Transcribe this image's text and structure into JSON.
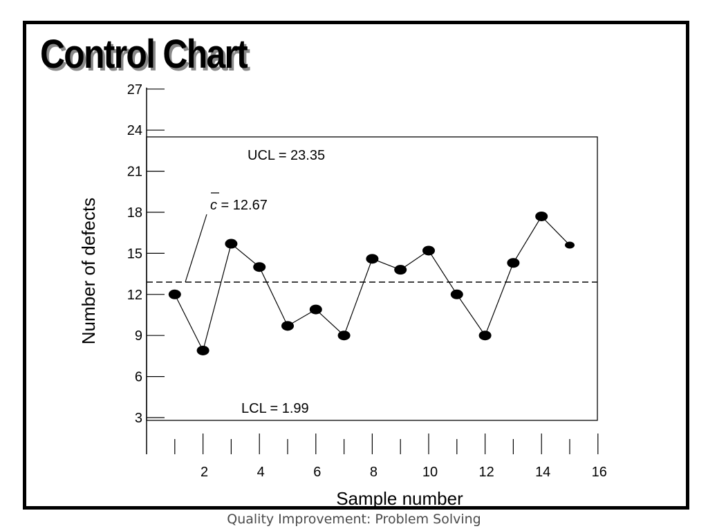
{
  "slide": {
    "title": "Control Chart",
    "footer": "Quality Improvement: Problem Solving"
  },
  "chart_data": {
    "type": "line",
    "title": "",
    "xlabel": "Sample number",
    "ylabel": "Number of defects",
    "x": [
      1,
      2,
      3,
      4,
      5,
      6,
      7,
      8,
      9,
      10,
      11,
      12,
      13,
      14,
      15
    ],
    "values": [
      12,
      7.9,
      15.7,
      14,
      9.7,
      10.9,
      9,
      14.6,
      13.8,
      15.2,
      12,
      9,
      14.3,
      17.7,
      15.6
    ],
    "xlim": [
      0,
      16
    ],
    "ylim": [
      3,
      27
    ],
    "x_ticks": [
      2,
      4,
      6,
      8,
      10,
      12,
      14,
      16
    ],
    "y_ticks": [
      3,
      6,
      9,
      12,
      15,
      18,
      21,
      24,
      27
    ],
    "center_line": {
      "label_symbol": "c",
      "label_value": " = 12.67",
      "value": 12.67,
      "style": "dashed"
    },
    "ucl": {
      "label": "UCL = 23.35",
      "value": 23.35
    },
    "lcl": {
      "label": "LCL = 1.99",
      "value": 1.99
    },
    "grid": false,
    "marker_color": "#000000"
  }
}
